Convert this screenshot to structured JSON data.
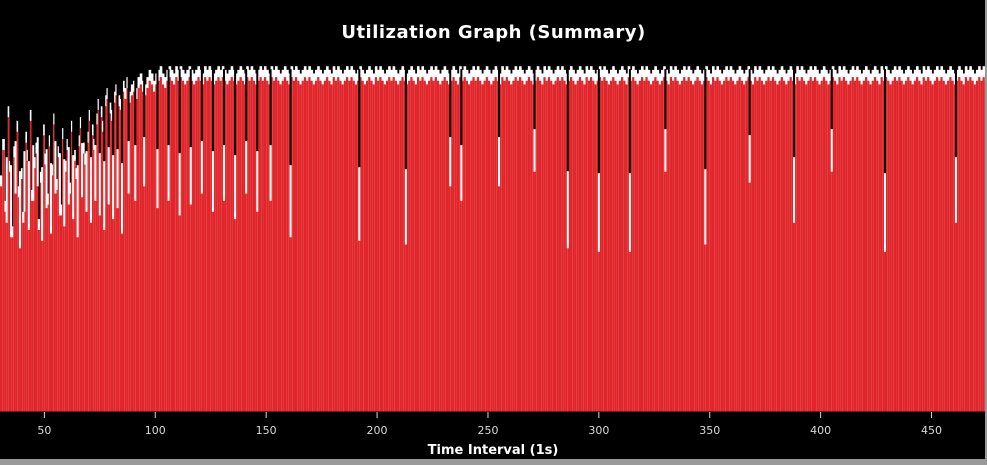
{
  "chart_data": {
    "type": "bar",
    "title": "Utilization Graph (Summary)",
    "xlabel": "Time Interval (1s)",
    "ylabel": "",
    "x_ticks": [
      50,
      100,
      150,
      200,
      250,
      300,
      350,
      400,
      450
    ],
    "xlim": [
      30,
      475
    ],
    "ylim": [
      0,
      100
    ],
    "grid": false,
    "legend": "none",
    "colors": {
      "bar": "#e0262a",
      "envelope": "#ffffff",
      "background": "#000000"
    },
    "series": [
      {
        "values": [
          62,
          72,
          55,
          81,
          66,
          48,
          70,
          77,
          59,
          64,
          52,
          74,
          69,
          80,
          58,
          67,
          71,
          50,
          63,
          76,
          68,
          57,
          73,
          65,
          79,
          61,
          70,
          54,
          75,
          66,
          72,
          60,
          77,
          69,
          64,
          73,
          78,
          71,
          68,
          74,
          80,
          76,
          72,
          79,
          83,
          81,
          77,
          84,
          86,
          82,
          80,
          85,
          87,
          84,
          83,
          88,
          86,
          89,
          85,
          87,
          88,
          86,
          89,
          90,
          88,
          87,
          89,
          91,
          90,
          88,
          90,
          91,
          92,
          90,
          89,
          91,
          92,
          91,
          90,
          92,
          91,
          92,
          91,
          90,
          91,
          92,
          91,
          90,
          91,
          92,
          91,
          90,
          92,
          91,
          92,
          91,
          90,
          91,
          92,
          91,
          92,
          91,
          90,
          91,
          92,
          91,
          90,
          91,
          92,
          91,
          90,
          92,
          91,
          92,
          91,
          90,
          91,
          92,
          91,
          92,
          91,
          90,
          92,
          91,
          92,
          91,
          90,
          91,
          92,
          91,
          90,
          92,
          91,
          92,
          91,
          90,
          91,
          92,
          91,
          92,
          91,
          90,
          91,
          92,
          91,
          90,
          91,
          92,
          91,
          90,
          92,
          91,
          92,
          91,
          90,
          91,
          92,
          91,
          92,
          91,
          90,
          91,
          92,
          91,
          90,
          91,
          92,
          91,
          90,
          92,
          91,
          92,
          91,
          90,
          91,
          92,
          91,
          92,
          91,
          90,
          91,
          92,
          91,
          90,
          91,
          92,
          91,
          90,
          92,
          91,
          92,
          91,
          90,
          91,
          92,
          91,
          92,
          91,
          90,
          91,
          92,
          91,
          90,
          91,
          92,
          91,
          90,
          92,
          91,
          92,
          91,
          90,
          91,
          92,
          91,
          92,
          91,
          90,
          91,
          92,
          91,
          90,
          91,
          92,
          91,
          90,
          92,
          91,
          92,
          91,
          90,
          91,
          92,
          91,
          92,
          91,
          90,
          91,
          92,
          91,
          90,
          91,
          92,
          91,
          90,
          92,
          91,
          92,
          91,
          90,
          91,
          92,
          91,
          92,
          91,
          90,
          91,
          92,
          91,
          90,
          91,
          92,
          91,
          90,
          92,
          91,
          92,
          91,
          90,
          91,
          92,
          91,
          92,
          91,
          90,
          91,
          92,
          91,
          90,
          91,
          92,
          91,
          90,
          92,
          91,
          92,
          91,
          90,
          91,
          92,
          91,
          92,
          91,
          90,
          91,
          92,
          91,
          90,
          91,
          92,
          91,
          90,
          92,
          91,
          92,
          91,
          90,
          91,
          92,
          91,
          92,
          91,
          90,
          91,
          92,
          91,
          90,
          91,
          92,
          91,
          90,
          92,
          91,
          92,
          91,
          90,
          91,
          92,
          91,
          92,
          91,
          90,
          91,
          92,
          91,
          90,
          91,
          92,
          91,
          90,
          92,
          91,
          92,
          91,
          90,
          91,
          92,
          91,
          92,
          91,
          90,
          91,
          92,
          91,
          90,
          91,
          92,
          91,
          90,
          92,
          91,
          92,
          91,
          90,
          91,
          92,
          91,
          92,
          91,
          90,
          91,
          92,
          91,
          90,
          91,
          92,
          91,
          90,
          92,
          91,
          92,
          91,
          90,
          91,
          92,
          91,
          92,
          91,
          90,
          91,
          92,
          91,
          90,
          91,
          92,
          91,
          90,
          92,
          91,
          92,
          91,
          90,
          91,
          92,
          91,
          92,
          91,
          90,
          91,
          92,
          91,
          90,
          91,
          92,
          91,
          90,
          92,
          91,
          92,
          91,
          90,
          91,
          92,
          91,
          92,
          91,
          90,
          91,
          92,
          91,
          90,
          91,
          92,
          91,
          90,
          92,
          91,
          92,
          91,
          90,
          91,
          92,
          91,
          92,
          91
        ]
      }
    ],
    "dips": [
      [
        33,
        52
      ],
      [
        35,
        48
      ],
      [
        37,
        60
      ],
      [
        39,
        45
      ],
      [
        41,
        55
      ],
      [
        43,
        50
      ],
      [
        45,
        58
      ],
      [
        47,
        62
      ],
      [
        49,
        47
      ],
      [
        51,
        56
      ],
      [
        53,
        49
      ],
      [
        55,
        60
      ],
      [
        57,
        54
      ],
      [
        59,
        51
      ],
      [
        61,
        57
      ],
      [
        63,
        53
      ],
      [
        65,
        48
      ],
      [
        67,
        59
      ],
      [
        69,
        55
      ],
      [
        71,
        52
      ],
      [
        73,
        58
      ],
      [
        75,
        54
      ],
      [
        77,
        50
      ],
      [
        79,
        57
      ],
      [
        81,
        53
      ],
      [
        83,
        56
      ],
      [
        85,
        49
      ],
      [
        88,
        60
      ],
      [
        91,
        58
      ],
      [
        95,
        62
      ],
      [
        101,
        56
      ],
      [
        106,
        58
      ],
      [
        111,
        54
      ],
      [
        116,
        57
      ],
      [
        121,
        60
      ],
      [
        126,
        55
      ],
      [
        131,
        58
      ],
      [
        136,
        53
      ],
      [
        141,
        60
      ],
      [
        146,
        55
      ],
      [
        152,
        58
      ],
      [
        161,
        48
      ],
      [
        192,
        47
      ],
      [
        213,
        46
      ],
      [
        233,
        62
      ],
      [
        238,
        58
      ],
      [
        255,
        62
      ],
      [
        271,
        66
      ],
      [
        286,
        45
      ],
      [
        300,
        44
      ],
      [
        314,
        44
      ],
      [
        330,
        66
      ],
      [
        348,
        46
      ],
      [
        368,
        63
      ],
      [
        388,
        52
      ],
      [
        405,
        66
      ],
      [
        429,
        44
      ],
      [
        461,
        52
      ]
    ]
  }
}
